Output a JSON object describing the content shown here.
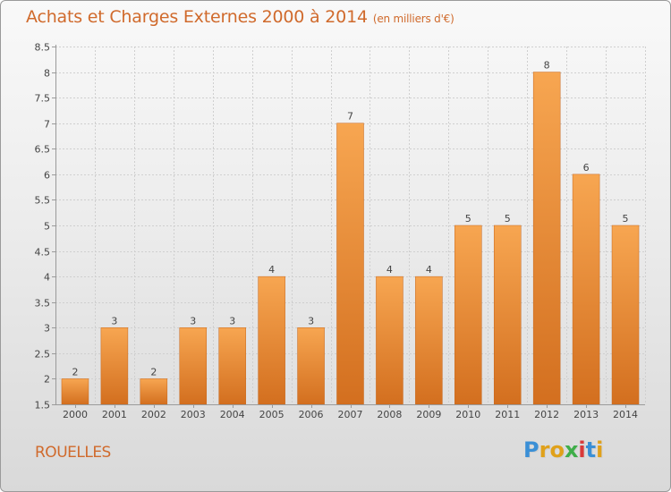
{
  "title": "Achats et Charges Externes 2000 à 2014",
  "subtitle": "(en milliers d'€)",
  "commune": "ROUELLES",
  "logo": {
    "parts": [
      "P",
      "r",
      "o",
      "x",
      "i",
      "t",
      "i"
    ],
    "colors": [
      "#3a8fd6",
      "#e0a11a",
      "#e0a11a",
      "#3fae49",
      "#d93a3a",
      "#3a8fd6",
      "#e0a11a"
    ]
  },
  "colors": {
    "bar_light": "#f7a651",
    "bar_dark": "#d36f1f",
    "grid": "#cfcfcf",
    "axis": "#9a9a9a"
  },
  "chart_data": {
    "type": "bar",
    "title": "Achats et Charges Externes 2000 à 2014",
    "subtitle": "(en milliers d'€)",
    "categories": [
      "2000",
      "2001",
      "2002",
      "2003",
      "2004",
      "2005",
      "2006",
      "2007",
      "2008",
      "2009",
      "2010",
      "2011",
      "2012",
      "2013",
      "2014"
    ],
    "values": [
      2,
      3,
      2,
      3,
      3,
      4,
      3,
      7,
      4,
      4,
      5,
      5,
      8,
      6,
      5
    ],
    "ylim": [
      1.5,
      8.5
    ],
    "yticks": [
      1.5,
      2,
      2.5,
      3,
      3.5,
      4,
      4.5,
      5,
      5.5,
      6,
      6.5,
      7,
      7.5,
      8,
      8.5
    ],
    "ytick_labels": [
      "1.5",
      "2",
      "2.5",
      "3",
      "3.5",
      "4",
      "4.5",
      "5",
      "5.5",
      "6",
      "6.5",
      "7",
      "7.5",
      "8",
      "8.5"
    ],
    "xlabel": "",
    "ylabel": "",
    "grid": true
  }
}
